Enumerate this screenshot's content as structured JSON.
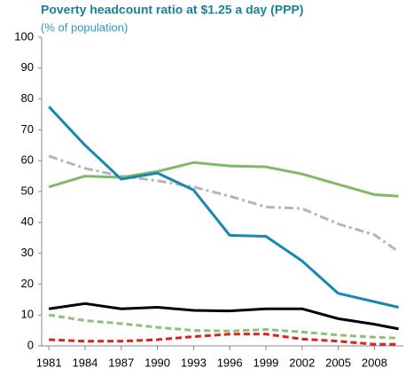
{
  "chart_data": {
    "type": "line",
    "title": "Poverty headcount ratio at $1.25 a day (PPP)",
    "subtitle": "(% of population)",
    "x": [
      1981,
      1984,
      1987,
      1990,
      1993,
      1996,
      1999,
      2002,
      2005,
      2008,
      2010
    ],
    "xlim": [
      1980.4,
      2010.4
    ],
    "xticks": [
      1981,
      1984,
      1987,
      1990,
      1993,
      1996,
      1999,
      2002,
      2005,
      2008
    ],
    "ylim": [
      0,
      100
    ],
    "yticks": [
      0,
      10,
      20,
      30,
      40,
      50,
      60,
      70,
      80,
      90,
      100
    ],
    "grid": false,
    "series": [
      {
        "color": "#b5b5b5",
        "style": "dashdot",
        "values": [
          61.5,
          57.5,
          55,
          53.5,
          51.5,
          48.5,
          45,
          44.5,
          39.5,
          36,
          30.5
        ]
      },
      {
        "color": "#7fba6a",
        "style": "solid",
        "values": [
          51.5,
          55,
          54.6,
          56.5,
          59.4,
          58.3,
          58,
          55.7,
          52.3,
          49,
          48.5
        ]
      },
      {
        "color": "#1a86b3",
        "style": "solid",
        "values": [
          77.5,
          65,
          54,
          56,
          50.5,
          35.8,
          35.5,
          27.5,
          17,
          14.3,
          12.5
        ]
      },
      {
        "color": "#000000",
        "style": "solid",
        "values": [
          12,
          13.7,
          12,
          12.5,
          11.5,
          11.3,
          12,
          12,
          8.8,
          7,
          5.5
        ]
      },
      {
        "color": "#8fc07a",
        "style": "dashed",
        "values": [
          10,
          8.2,
          7.2,
          6,
          5,
          4.8,
          5.3,
          4.5,
          3.5,
          2.8,
          2.5
        ]
      },
      {
        "color": "#e0201a",
        "style": "dashed",
        "values": [
          2,
          1.5,
          1.5,
          2,
          3,
          3.8,
          3.8,
          2.2,
          1.5,
          0.5,
          0.5
        ]
      }
    ]
  }
}
